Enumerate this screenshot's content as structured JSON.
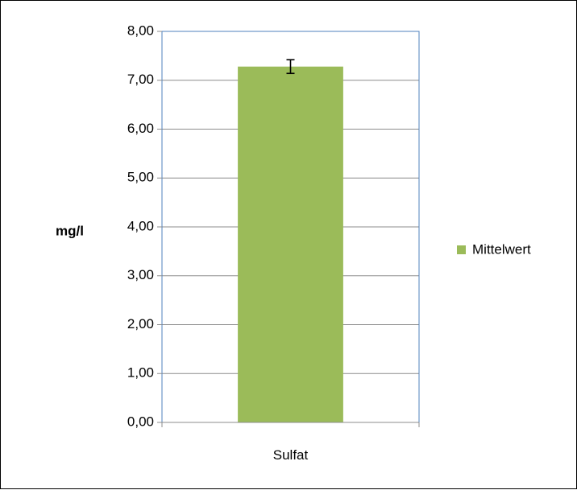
{
  "chart_data": {
    "type": "bar",
    "categories": [
      "Sulfat"
    ],
    "series": [
      {
        "name": "Mittelwert",
        "values": [
          7.28
        ],
        "error": [
          0.14
        ]
      }
    ],
    "ylabel": "mg/l",
    "ylim": [
      0,
      8
    ],
    "yticks": [
      "0,00",
      "1,00",
      "2,00",
      "3,00",
      "4,00",
      "5,00",
      "6,00",
      "7,00",
      "8,00"
    ],
    "grid": true,
    "legend_position": "right",
    "colors": {
      "bar": "#9bbb59",
      "grid": "#8c8c8c",
      "plot_border": "#4f81bd",
      "text": "#000000"
    }
  }
}
